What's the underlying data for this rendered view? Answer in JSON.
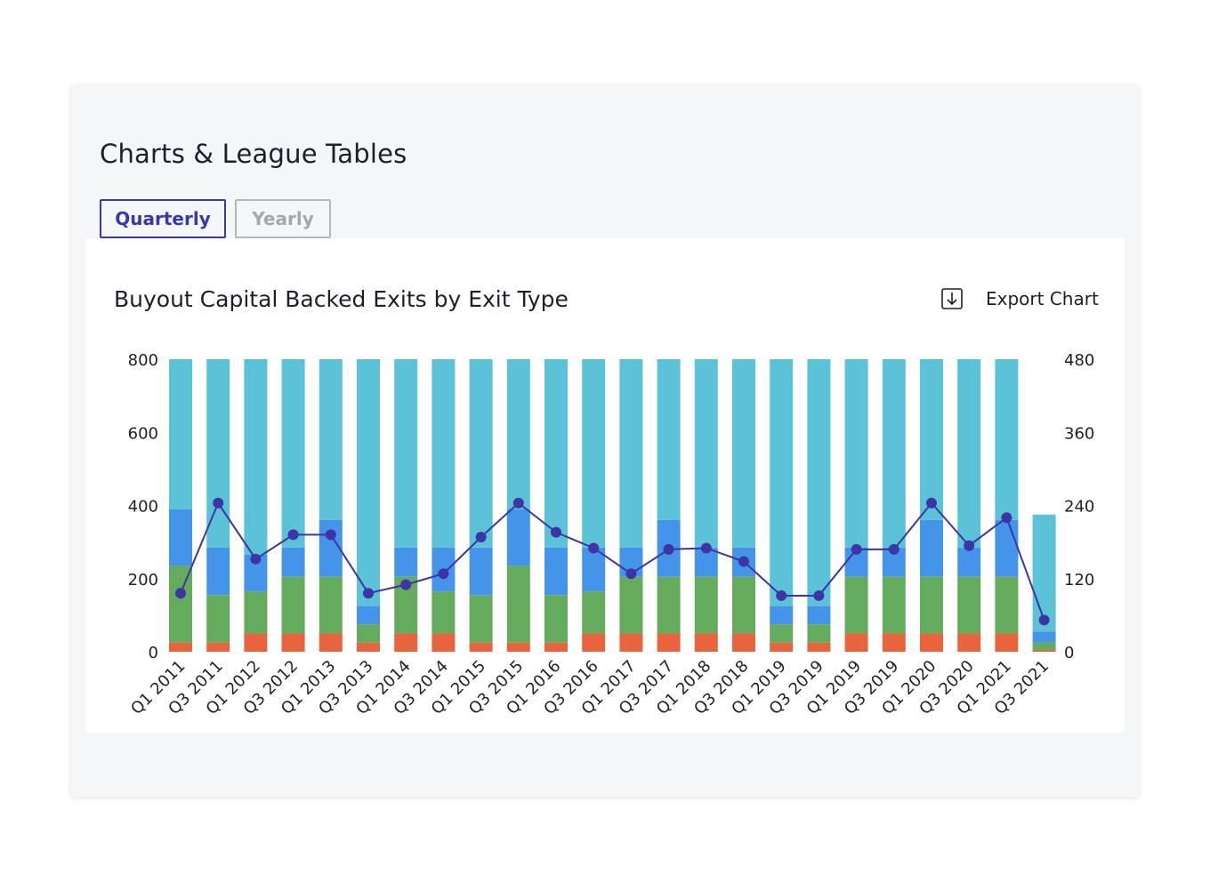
{
  "page": {
    "title": "Charts & League Tables",
    "tabs": [
      {
        "label": "Quarterly",
        "active": true
      },
      {
        "label": "Yearly",
        "active": false
      }
    ]
  },
  "chart_header": {
    "title": "Buyout Capital Backed Exits by Exit Type",
    "export_label": "Export Chart",
    "export_icon": "download-icon"
  },
  "colors": {
    "series1": "#e8643c",
    "series2": "#64ab5e",
    "series3": "#4495e9",
    "series4": "#5cc2d8",
    "line": "#3d35a6",
    "accent": "#3a37a8"
  },
  "chart_data": {
    "type": "bar",
    "stacked": true,
    "categories": [
      "Q1 2011",
      "Q3 2011",
      "Q1 2012",
      "Q3 2012",
      "Q1 2013",
      "Q3 2013",
      "Q1 2014",
      "Q3 2014",
      "Q1 2015",
      "Q3 2015",
      "Q1 2016",
      "Q3 2016",
      "Q1 2017",
      "Q3 2017",
      "Q1 2018",
      "Q3 2018",
      "Q1 2019",
      "Q3 2019",
      "Q1 2019",
      "Q3 2019",
      "Q1 2020",
      "Q3 2020",
      "Q1 2021",
      "Q3 2021"
    ],
    "series": [
      {
        "values": [
          25,
          25,
          50,
          50,
          50,
          25,
          50,
          50,
          25,
          25,
          25,
          50,
          50,
          50,
          50,
          50,
          25,
          25,
          50,
          50,
          50,
          50,
          50,
          5
        ]
      },
      {
        "values": [
          210,
          130,
          115,
          155,
          155,
          50,
          155,
          115,
          130,
          210,
          130,
          115,
          155,
          155,
          155,
          155,
          50,
          50,
          155,
          155,
          155,
          155,
          155,
          20
        ]
      },
      {
        "values": [
          155,
          130,
          100,
          80,
          155,
          50,
          80,
          120,
          130,
          155,
          130,
          120,
          80,
          155,
          80,
          80,
          50,
          50,
          80,
          80,
          155,
          80,
          155,
          30
        ]
      },
      {
        "values": [
          410,
          515,
          535,
          515,
          440,
          675,
          515,
          515,
          515,
          410,
          515,
          515,
          515,
          440,
          515,
          515,
          675,
          675,
          515,
          515,
          440,
          515,
          440,
          320
        ]
      }
    ],
    "line_series": {
      "axis": "right",
      "values": [
        96,
        244,
        152,
        192,
        192,
        96,
        110,
        128,
        188,
        244,
        196,
        170,
        128,
        168,
        170,
        148,
        92,
        92,
        168,
        168,
        244,
        174,
        220,
        52
      ]
    },
    "left_axis": {
      "ylim": [
        0,
        800
      ],
      "ticks": [
        0,
        200,
        400,
        600,
        800
      ]
    },
    "right_axis": {
      "ylim": [
        0,
        480
      ],
      "ticks": [
        0,
        120,
        240,
        360,
        480
      ]
    },
    "grid": false,
    "legend": "none"
  }
}
